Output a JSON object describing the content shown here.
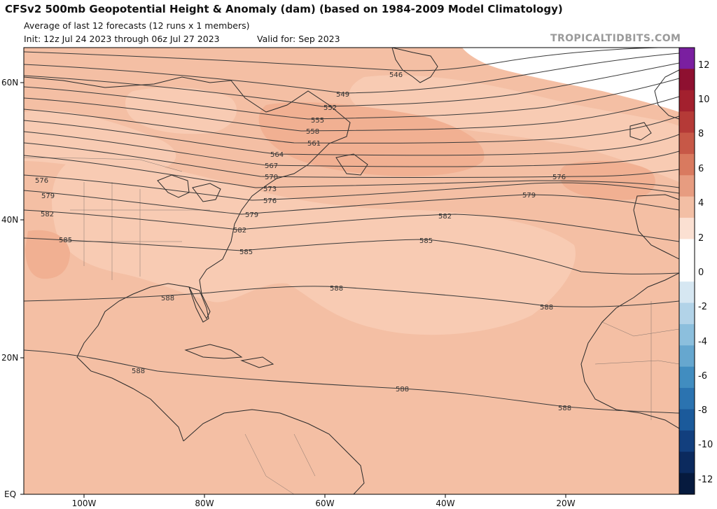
{
  "header": {
    "title": "CFSv2 500mb Geopotential Height & Anomaly (dam) (based on 1984-2009 Model Climatology)",
    "subtitle": "Average of last 12 forecasts (12 runs x 1 members)",
    "init": "Init: 12z Jul 24 2023 through 06z Jul 27 2023",
    "valid": "Valid for: Sep 2023",
    "watermark": "TROPICALTIDBITS.COM"
  },
  "axes": {
    "lat_labels": [
      "60N",
      "40N",
      "20N",
      "EQ"
    ],
    "lon_labels": [
      "100W",
      "80W",
      "60W",
      "40W",
      "20W"
    ]
  },
  "contours": [
    {
      "level": 546,
      "labels": [
        "546"
      ]
    },
    {
      "level": 549,
      "labels": [
        "549"
      ]
    },
    {
      "level": 552,
      "labels": [
        "552"
      ]
    },
    {
      "level": 555,
      "labels": [
        "555"
      ]
    },
    {
      "level": 558,
      "labels": [
        "558"
      ]
    },
    {
      "level": 561,
      "labels": [
        "561"
      ]
    },
    {
      "level": 564,
      "labels": [
        "564"
      ]
    },
    {
      "level": 567,
      "labels": [
        "567"
      ]
    },
    {
      "level": 570,
      "labels": [
        "570"
      ]
    },
    {
      "level": 573,
      "labels": [
        "573"
      ]
    },
    {
      "level": 576,
      "labels": [
        "576",
        "576",
        "576"
      ]
    },
    {
      "level": 579,
      "labels": [
        "579",
        "579",
        "579"
      ]
    },
    {
      "level": 582,
      "labels": [
        "582",
        "582",
        "582"
      ]
    },
    {
      "level": 585,
      "labels": [
        "585",
        "585",
        "585"
      ]
    },
    {
      "level": 588,
      "labels": [
        "588",
        "588",
        "588",
        "588",
        "588",
        "588"
      ]
    }
  ],
  "colorbar": {
    "labels": [
      "12",
      "10",
      "8",
      "6",
      "4",
      "2",
      "0",
      "-2",
      "-4",
      "-6",
      "-8",
      "-10",
      "-12"
    ],
    "colors": [
      "#7a1fa0",
      "#8e1030",
      "#a3202e",
      "#b53a37",
      "#c75847",
      "#d97a5f",
      "#e79c80",
      "#f3bfa5",
      "#fbe0d2",
      "#ffffff",
      "#ffffff",
      "#d6e7f2",
      "#b2d3e8",
      "#8cbfdd",
      "#66a7cf",
      "#418dc0",
      "#2b73b0",
      "#1b5a9b",
      "#123f7e",
      "#0b2a5e",
      "#061a3e"
    ]
  },
  "colors": {
    "anom_1": "#f8cbb3",
    "anom_2": "#f4bfa4",
    "anom_3": "#f1b092",
    "anom_4": "#ee9f80",
    "neutral": "#ffffff",
    "land_line": "#2a2a2a",
    "contour": "#3a3a3a"
  }
}
